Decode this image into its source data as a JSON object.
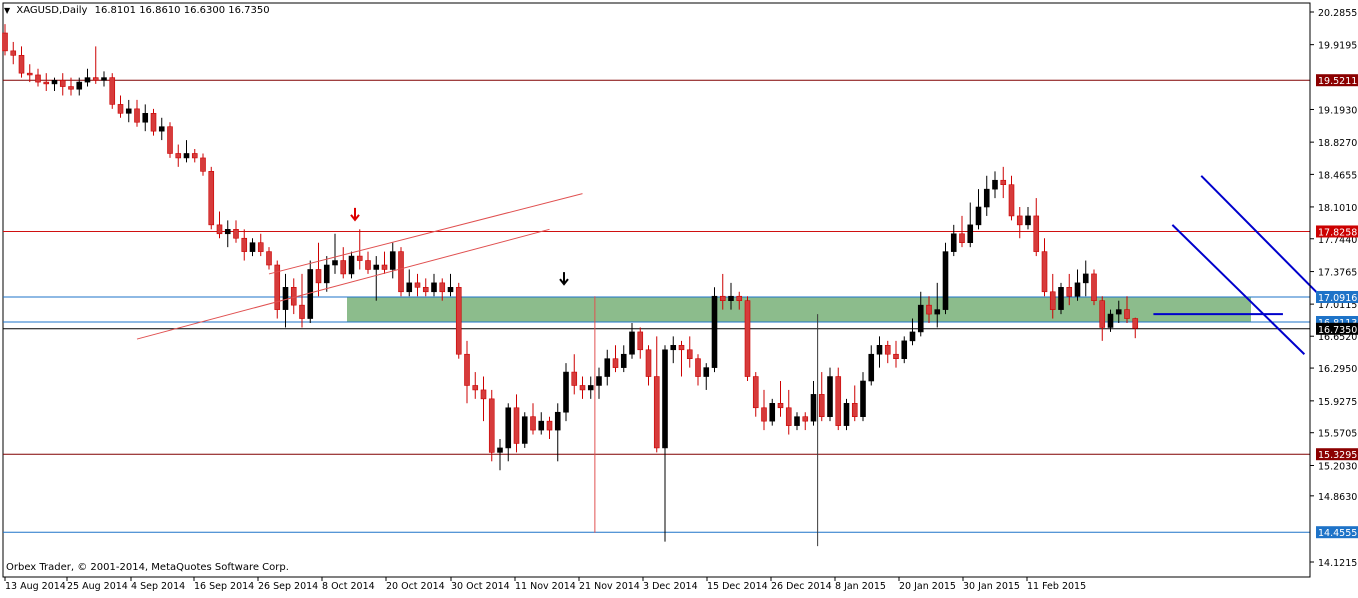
{
  "header": {
    "symbol": "XAGUSD,Daily",
    "ohlc": "16.8101 16.8610 16.6300 16.7350"
  },
  "footer": {
    "copyright": "Orbex Trader, © 2001-2014, MetaQuotes Software Corp."
  },
  "chart_data": {
    "type": "candlestick",
    "grid": false,
    "ylim": [
      14.1215,
      20.2855
    ],
    "y_ticks": [
      "20.2855",
      "19.9195",
      "19.5211",
      "19.1930",
      "18.8270",
      "18.4655",
      "18.1010",
      "17.8258",
      "17.7440",
      "17.3765",
      "17.0916",
      "17.0115",
      "16.8113",
      "16.7350",
      "16.6520",
      "16.2950",
      "15.9275",
      "15.5705",
      "15.3295",
      "15.2030",
      "14.8630",
      "14.4555",
      "14.1215"
    ],
    "x_labels": [
      "13 Aug 2014",
      "25 Aug 2014",
      "4 Sep 2014",
      "16 Sep 2014",
      "26 Sep 2014",
      "8 Oct 2014",
      "20 Oct 2014",
      "30 Oct 2014",
      "11 Nov 2014",
      "21 Nov 2014",
      "3 Dec 2014",
      "15 Dec 2014",
      "26 Dec 2014",
      "8 Jan 2015",
      "20 Jan 2015",
      "30 Jan 2015",
      "11 Feb 2015"
    ],
    "levels": [
      {
        "price": 19.5211,
        "label": "19.5211",
        "color": "#8b0000",
        "line": "#800000"
      },
      {
        "price": 17.8258,
        "label": "17.8258",
        "color": "#cc0000",
        "line": "#d01010"
      },
      {
        "price": 17.0916,
        "label": "17.0916",
        "color": "#1e73c8",
        "line": "#1e73c8"
      },
      {
        "price": 16.8113,
        "label": "16.8113",
        "color": "#1e73c8",
        "line": "#1e73c8"
      },
      {
        "price": 16.735,
        "label": "16.7350",
        "color": "#000000",
        "line": "#000000"
      },
      {
        "price": 15.3295,
        "label": "15.3295",
        "color": "#8b0000",
        "line": "#800000"
      },
      {
        "price": 14.4555,
        "label": "14.4555",
        "color": "#1e73c8",
        "line": "#1e73c8"
      }
    ],
    "zone": {
      "from": 16.8113,
      "to": 17.0916,
      "color": "#8cbc8c"
    },
    "arrows": [
      {
        "type": "down",
        "color": "#dd0000",
        "price": 18.0
      },
      {
        "type": "down",
        "color": "#000000",
        "price": 17.28
      }
    ],
    "colors": {
      "bull": "#000000",
      "bear": "#cc0000",
      "bear_body": "#d63b3b"
    },
    "candles": [
      [
        20.05,
        20.15,
        19.8,
        19.85
      ],
      [
        19.85,
        19.95,
        19.7,
        19.8
      ],
      [
        19.8,
        19.9,
        19.55,
        19.6
      ],
      [
        19.6,
        19.7,
        19.5,
        19.58
      ],
      [
        19.58,
        19.65,
        19.45,
        19.5
      ],
      [
        19.5,
        19.6,
        19.4,
        19.48
      ],
      [
        19.48,
        19.55,
        19.4,
        19.52
      ],
      [
        19.52,
        19.6,
        19.35,
        19.45
      ],
      [
        19.45,
        19.55,
        19.35,
        19.42
      ],
      [
        19.42,
        19.55,
        19.35,
        19.5
      ],
      [
        19.5,
        19.65,
        19.45,
        19.55
      ],
      [
        19.55,
        19.9,
        19.48,
        19.52
      ],
      [
        19.52,
        19.62,
        19.45,
        19.55
      ],
      [
        19.55,
        19.6,
        19.2,
        19.25
      ],
      [
        19.25,
        19.35,
        19.1,
        19.15
      ],
      [
        19.15,
        19.3,
        19.05,
        19.2
      ],
      [
        19.2,
        19.3,
        19.0,
        19.05
      ],
      [
        19.05,
        19.25,
        18.95,
        19.15
      ],
      [
        19.15,
        19.2,
        18.9,
        18.95
      ],
      [
        18.95,
        19.1,
        18.85,
        19.0
      ],
      [
        19.0,
        19.05,
        18.65,
        18.7
      ],
      [
        18.7,
        18.8,
        18.55,
        18.65
      ],
      [
        18.65,
        18.85,
        18.6,
        18.7
      ],
      [
        18.7,
        18.75,
        18.6,
        18.65
      ],
      [
        18.65,
        18.7,
        18.45,
        18.5
      ],
      [
        18.5,
        18.55,
        17.85,
        17.9
      ],
      [
        17.9,
        18.05,
        17.75,
        17.8
      ],
      [
        17.8,
        17.95,
        17.65,
        17.85
      ],
      [
        17.85,
        17.95,
        17.7,
        17.75
      ],
      [
        17.75,
        17.85,
        17.5,
        17.6
      ],
      [
        17.6,
        17.75,
        17.55,
        17.7
      ],
      [
        17.7,
        17.8,
        17.55,
        17.6
      ],
      [
        17.6,
        17.65,
        17.4,
        17.45
      ],
      [
        17.45,
        17.5,
        16.85,
        16.95
      ],
      [
        16.95,
        17.35,
        16.75,
        17.2
      ],
      [
        17.2,
        17.3,
        16.9,
        17.0
      ],
      [
        17.0,
        17.35,
        16.75,
        16.85
      ],
      [
        16.85,
        17.5,
        16.8,
        17.4
      ],
      [
        17.4,
        17.7,
        17.1,
        17.25
      ],
      [
        17.25,
        17.55,
        17.15,
        17.45
      ],
      [
        17.45,
        17.8,
        17.35,
        17.5
      ],
      [
        17.5,
        17.65,
        17.3,
        17.35
      ],
      [
        17.35,
        17.6,
        17.3,
        17.55
      ],
      [
        17.55,
        17.85,
        17.4,
        17.5
      ],
      [
        17.5,
        17.6,
        17.35,
        17.4
      ],
      [
        17.4,
        17.55,
        17.05,
        17.45
      ],
      [
        17.45,
        17.6,
        17.35,
        17.4
      ],
      [
        17.4,
        17.7,
        17.3,
        17.6
      ],
      [
        17.6,
        17.65,
        17.1,
        17.15
      ],
      [
        17.15,
        17.4,
        17.1,
        17.25
      ],
      [
        17.25,
        17.35,
        17.1,
        17.2
      ],
      [
        17.2,
        17.3,
        17.1,
        17.15
      ],
      [
        17.15,
        17.35,
        17.1,
        17.25
      ],
      [
        17.25,
        17.3,
        17.05,
        17.15
      ],
      [
        17.15,
        17.35,
        17.1,
        17.2
      ],
      [
        17.2,
        17.25,
        16.4,
        16.45
      ],
      [
        16.45,
        16.6,
        15.9,
        16.1
      ],
      [
        16.1,
        16.25,
        15.95,
        16.05
      ],
      [
        16.05,
        16.2,
        15.7,
        15.95
      ],
      [
        15.95,
        16.05,
        15.25,
        15.35
      ],
      [
        15.35,
        15.5,
        15.15,
        15.4
      ],
      [
        15.4,
        15.9,
        15.25,
        15.85
      ],
      [
        15.85,
        16.0,
        15.35,
        15.45
      ],
      [
        15.45,
        15.8,
        15.4,
        15.75
      ],
      [
        15.75,
        15.9,
        15.55,
        15.6
      ],
      [
        15.6,
        15.8,
        15.55,
        15.7
      ],
      [
        15.7,
        15.75,
        15.5,
        15.6
      ],
      [
        15.6,
        15.9,
        15.25,
        15.8
      ],
      [
        15.8,
        16.35,
        15.7,
        16.25
      ],
      [
        16.25,
        16.45,
        16.0,
        16.1
      ],
      [
        16.1,
        16.2,
        15.95,
        16.05
      ],
      [
        16.05,
        16.2,
        15.95,
        16.1
      ],
      [
        16.1,
        16.3,
        15.95,
        16.2
      ],
      [
        16.2,
        16.5,
        16.1,
        16.4
      ],
      [
        16.4,
        16.55,
        16.25,
        16.3
      ],
      [
        16.3,
        16.55,
        16.25,
        16.45
      ],
      [
        16.45,
        16.8,
        16.4,
        16.7
      ],
      [
        16.7,
        16.75,
        16.4,
        16.5
      ],
      [
        16.5,
        16.55,
        16.1,
        16.2
      ],
      [
        16.2,
        16.65,
        15.35,
        15.4
      ],
      [
        15.4,
        16.55,
        14.35,
        16.5
      ],
      [
        16.5,
        16.65,
        16.35,
        16.55
      ],
      [
        16.55,
        16.6,
        16.2,
        16.5
      ],
      [
        16.5,
        16.65,
        16.3,
        16.4
      ],
      [
        16.4,
        16.45,
        16.1,
        16.2
      ],
      [
        16.2,
        16.35,
        16.05,
        16.3
      ],
      [
        16.3,
        17.2,
        16.25,
        17.1
      ],
      [
        17.1,
        17.35,
        16.95,
        17.05
      ],
      [
        17.05,
        17.25,
        16.95,
        17.1
      ],
      [
        17.1,
        17.15,
        16.95,
        17.05
      ],
      [
        17.05,
        17.1,
        16.15,
        16.2
      ],
      [
        16.2,
        16.25,
        15.75,
        15.85
      ],
      [
        15.85,
        16.05,
        15.6,
        15.7
      ],
      [
        15.7,
        15.95,
        15.65,
        15.9
      ],
      [
        15.9,
        16.15,
        15.75,
        15.85
      ],
      [
        15.85,
        16.05,
        15.55,
        15.65
      ],
      [
        15.65,
        15.8,
        15.6,
        15.75
      ],
      [
        15.75,
        15.8,
        15.6,
        15.7
      ],
      [
        15.7,
        16.15,
        15.65,
        16.0
      ],
      [
        16.0,
        16.25,
        15.7,
        15.75
      ],
      [
        15.75,
        16.3,
        15.7,
        16.2
      ],
      [
        16.2,
        16.3,
        15.6,
        15.65
      ],
      [
        15.65,
        15.95,
        15.6,
        15.9
      ],
      [
        15.9,
        16.1,
        15.7,
        15.75
      ],
      [
        15.75,
        16.25,
        15.7,
        16.15
      ],
      [
        16.15,
        16.55,
        16.1,
        16.45
      ],
      [
        16.45,
        16.65,
        16.3,
        16.55
      ],
      [
        16.55,
        16.6,
        16.35,
        16.45
      ],
      [
        16.45,
        16.6,
        16.3,
        16.4
      ],
      [
        16.4,
        16.65,
        16.35,
        16.6
      ],
      [
        16.6,
        16.85,
        16.55,
        16.7
      ],
      [
        16.7,
        17.15,
        16.65,
        17.0
      ],
      [
        17.0,
        17.1,
        16.8,
        16.9
      ],
      [
        16.9,
        17.25,
        16.75,
        16.95
      ],
      [
        16.95,
        17.7,
        16.9,
        17.6
      ],
      [
        17.6,
        17.9,
        17.55,
        17.8
      ],
      [
        17.8,
        18.0,
        17.65,
        17.7
      ],
      [
        17.7,
        18.15,
        17.65,
        17.9
      ],
      [
        17.9,
        18.3,
        17.85,
        18.1
      ],
      [
        18.1,
        18.45,
        18.0,
        18.3
      ],
      [
        18.3,
        18.5,
        18.2,
        18.4
      ],
      [
        18.4,
        18.55,
        18.2,
        18.35
      ],
      [
        18.35,
        18.45,
        17.95,
        18.0
      ],
      [
        18.0,
        18.1,
        17.75,
        17.9
      ],
      [
        17.9,
        18.1,
        17.85,
        18.0
      ],
      [
        18.0,
        18.2,
        17.55,
        17.6
      ],
      [
        17.6,
        17.75,
        17.1,
        17.15
      ],
      [
        17.15,
        17.35,
        16.85,
        16.95
      ],
      [
        16.95,
        17.25,
        16.9,
        17.2
      ],
      [
        17.2,
        17.35,
        17.0,
        17.1
      ],
      [
        17.1,
        17.4,
        17.05,
        17.25
      ],
      [
        17.25,
        17.5,
        17.1,
        17.35
      ],
      [
        17.35,
        17.4,
        17.0,
        17.05
      ],
      [
        17.05,
        17.1,
        16.6,
        16.75
      ],
      [
        16.75,
        16.95,
        16.7,
        16.9
      ],
      [
        16.9,
        17.05,
        16.8,
        16.95
      ],
      [
        16.95,
        17.1,
        16.8,
        16.85
      ],
      [
        16.85,
        16.86,
        16.63,
        16.74
      ]
    ],
    "trendlines": [
      {
        "color": "#e05050",
        "width": 1,
        "points": [
          [
            16,
            16.62
          ],
          [
            66,
            17.85
          ]
        ]
      },
      {
        "color": "#e05050",
        "width": 1,
        "points": [
          [
            32,
            17.35
          ],
          [
            70,
            18.25
          ]
        ]
      },
      {
        "color": "#e05050",
        "width": 1,
        "points": [
          [
            71.5,
            17.1
          ],
          [
            71.5,
            14.45
          ]
        ]
      },
      {
        "color": "#3a3a3a",
        "width": 1,
        "points": [
          [
            98.5,
            16.9
          ],
          [
            98.5,
            14.3
          ]
        ]
      },
      {
        "color": "#0000cc",
        "width": 2,
        "points": [
          [
            145,
            18.45
          ],
          [
            160,
            17.05
          ]
        ]
      },
      {
        "color": "#0000cc",
        "width": 2,
        "points": [
          [
            141.5,
            17.9
          ],
          [
            157.5,
            16.45
          ]
        ]
      },
      {
        "color": "#0000cc",
        "width": 2,
        "points": [
          [
            139.2,
            16.9
          ],
          [
            154.9,
            16.9
          ]
        ]
      }
    ]
  }
}
